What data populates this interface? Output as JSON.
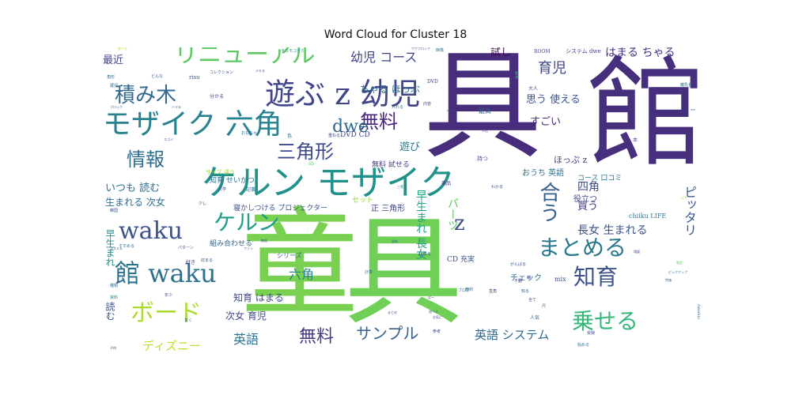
{
  "chart_data": {
    "type": "wordcloud",
    "title": "Word Cloud for Cluster 18",
    "words": [
      {
        "text": "館",
        "weight": 100,
        "color": "#46307e"
      },
      {
        "text": "具",
        "weight": 98,
        "color": "#472d7b"
      },
      {
        "text": "童",
        "weight": 96,
        "color": "#7ad151"
      },
      {
        "text": "具",
        "weight": 94,
        "color": "#70cf57"
      },
      {
        "text": "ケルン モザイク",
        "weight": 60,
        "color": "#21918c"
      },
      {
        "text": "遊ぶ z 幼児",
        "weight": 48,
        "color": "#404688"
      },
      {
        "text": "モザイク 六角",
        "weight": 46,
        "color": "#26828e"
      },
      {
        "text": "リニューアル",
        "weight": 40,
        "color": "#5ec962"
      },
      {
        "text": "waku",
        "weight": 38,
        "color": "#3b528b"
      },
      {
        "text": "館 waku",
        "weight": 40,
        "color": "#2c728e"
      },
      {
        "text": "ボード",
        "weight": 38,
        "color": "#addc30"
      },
      {
        "text": "積み木",
        "weight": 34,
        "color": "#31688e"
      },
      {
        "text": "無料",
        "weight": 30,
        "color": "#482878"
      },
      {
        "text": "三角形",
        "weight": 30,
        "color": "#3e4989"
      },
      {
        "text": "ケルン",
        "weight": 34,
        "color": "#1f9e89"
      },
      {
        "text": "まとめる",
        "weight": 32,
        "color": "#2a788e"
      },
      {
        "text": "知育",
        "weight": 30,
        "color": "#3b528b"
      },
      {
        "text": "乗せる",
        "weight": 30,
        "color": "#35b779"
      },
      {
        "text": "情報",
        "weight": 28,
        "color": "#2e6e8e"
      },
      {
        "text": "合う",
        "weight": 28,
        "color": "#355f8d"
      },
      {
        "text": "dwe",
        "weight": 26,
        "color": "#31688e"
      },
      {
        "text": "z",
        "weight": 26,
        "color": "#3e4a89"
      },
      {
        "text": "サンプル",
        "weight": 24,
        "color": "#33638d"
      },
      {
        "text": "無料",
        "weight": 24,
        "color": "#443983"
      },
      {
        "text": "育児",
        "weight": 22,
        "color": "#3f4788"
      },
      {
        "text": "幼児 コース",
        "weight": 18,
        "color": "#414487"
      },
      {
        "text": "ピッタリ",
        "weight": 22,
        "color": "#38588c"
      },
      {
        "text": "パーツ",
        "weight": 18,
        "color": "#5ec962"
      },
      {
        "text": "早生まれ 長女",
        "weight": 18,
        "color": "#20a386"
      },
      {
        "text": "長女 生まれる",
        "weight": 17,
        "color": "#3b528b"
      },
      {
        "text": "英語 システム",
        "weight": 18,
        "color": "#31688e"
      },
      {
        "text": "ディズニー",
        "weight": 18,
        "color": "#bddf26"
      },
      {
        "text": "英語",
        "weight": 18,
        "color": "#2c728e"
      },
      {
        "text": "六角",
        "weight": 18,
        "color": "#25848e"
      },
      {
        "text": "知育 はまる",
        "weight": 14,
        "color": "#3e4989"
      },
      {
        "text": "次女 育児",
        "weight": 14,
        "color": "#3f4889"
      },
      {
        "text": "最近",
        "weight": 16,
        "color": "#404688"
      },
      {
        "text": "試し",
        "weight": 16,
        "color": "#440154"
      },
      {
        "text": "はまる ちゃる",
        "weight": 16,
        "color": "#46337f"
      },
      {
        "text": "遊び",
        "weight": 16,
        "color": "#2a788e"
      },
      {
        "text": "すごい",
        "weight": 16,
        "color": "#482475"
      },
      {
        "text": "思う 使える",
        "weight": 15,
        "color": "#3b528b"
      },
      {
        "text": "四角",
        "weight": 16,
        "color": "#3e4989"
      },
      {
        "text": "買う",
        "weight": 15,
        "color": "#463480"
      },
      {
        "text": "いつも 読む",
        "weight": 15,
        "color": "#2d708e"
      },
      {
        "text": "生まれる 次女",
        "weight": 15,
        "color": "#2f6b8e"
      },
      {
        "text": "早生まれ",
        "weight": 15,
        "color": "#21918c"
      },
      {
        "text": "読む",
        "weight": 15,
        "color": "#3b528b"
      },
      {
        "text": "ちゃる ほっぷ",
        "weight": 13,
        "color": "#2c728e"
      },
      {
        "text": "ほっぷ z",
        "weight": 12,
        "color": "#433e85"
      },
      {
        "text": "おうち 英語",
        "weight": 12,
        "color": "#2c728e"
      },
      {
        "text": "役立つ",
        "weight": 12,
        "color": "#3f4889"
      },
      {
        "text": "コース 口コミ",
        "weight": 11,
        "color": "#2a788e"
      },
      {
        "text": "正 三角形",
        "weight": 11,
        "color": "#404688"
      },
      {
        "text": "CD 充実",
        "weight": 11,
        "color": "#3b528b"
      },
      {
        "text": "チェック",
        "weight": 11,
        "color": "#2f6b8e"
      },
      {
        "text": "寝かしつける プロジェクター",
        "weight": 11,
        "color": "#3b528b"
      },
      {
        "text": "知育 せいかつ",
        "weight": 11,
        "color": "#2c728e"
      },
      {
        "text": "組み合わせる",
        "weight": 11,
        "color": "#32648e"
      },
      {
        "text": "無料 試せる",
        "weight": 10,
        "color": "#433d84"
      },
      {
        "text": "DVD CD",
        "weight": 10,
        "color": "#3f4788"
      },
      {
        "text": "セット",
        "weight": 10,
        "color": "#8fd744"
      },
      {
        "text": "シリーズ",
        "weight": 9,
        "color": "#31688e"
      },
      {
        "text": "mix",
        "weight": 9,
        "color": "#3b528b"
      },
      {
        "text": "chiiku LIFE",
        "weight": 8,
        "color": "#2c728e"
      },
      {
        "text": "システム dwe",
        "weight": 8,
        "color": "#404688"
      },
      {
        "text": "ROOM",
        "weight": 7,
        "color": "#3e4989"
      },
      {
        "text": "risu",
        "weight": 8,
        "color": "#3b528b"
      },
      {
        "text": "最高",
        "weight": 9,
        "color": "#355f8d"
      },
      {
        "text": "サイズ 違う",
        "weight": 8,
        "color": "#a0da39"
      },
      {
        "text": "持つ",
        "weight": 8,
        "color": "#3b528b"
      },
      {
        "text": "商品",
        "weight": 7,
        "color": "#463480"
      },
      {
        "text": "分かる",
        "weight": 7,
        "color": "#443983"
      },
      {
        "text": "記事",
        "weight": 7,
        "color": "#2f6b8e"
      },
      {
        "text": "大人",
        "weight": 7,
        "color": "#404688"
      },
      {
        "text": "人気",
        "weight": 7,
        "color": "#31688e"
      },
      {
        "text": "好き",
        "weight": 7,
        "color": "#472d7b"
      },
      {
        "text": "色",
        "weight": 7,
        "color": "#2c728e"
      },
      {
        "text": "本",
        "weight": 7,
        "color": "#3b528b"
      },
      {
        "text": "sb",
        "weight": 7,
        "color": "#5ec962"
      },
      {
        "text": "DVD",
        "weight": 7,
        "color": "#3f4788"
      },
      {
        "text": "絵本",
        "weight": 6,
        "color": "#35b779"
      },
      {
        "text": "内容",
        "weight": 6,
        "color": "#433e85"
      },
      {
        "text": "ワクブロック",
        "weight": 5,
        "color": "#3b528b"
      },
      {
        "text": "映像",
        "weight": 6,
        "color": "#2c728e"
      },
      {
        "text": "はまる",
        "weight": 6,
        "color": "#3e4989"
      },
      {
        "text": "教材",
        "weight": 6,
        "color": "#31688e"
      },
      {
        "text": "全て",
        "weight": 6,
        "color": "#404688"
      },
      {
        "text": "ブログ",
        "weight": 6,
        "color": "#2a788e"
      },
      {
        "text": "参考",
        "weight": 6,
        "color": "#3e4989"
      },
      {
        "text": "受験",
        "weight": 6,
        "color": "#3b528b"
      },
      {
        "text": "始める",
        "weight": 6,
        "color": "#2c728e"
      },
      {
        "text": "Ameblo",
        "weight": 6,
        "color": "#31688e"
      },
      {
        "text": "コレクション",
        "weight": 6,
        "color": "#3b528b"
      },
      {
        "text": "モコモコゼミ",
        "weight": 6,
        "color": "#21918c"
      },
      {
        "text": "メモる",
        "weight": 5,
        "color": "#3e4989"
      },
      {
        "text": "角形",
        "weight": 6,
        "color": "#2c728e"
      },
      {
        "text": "どんな",
        "weight": 6,
        "color": "#3b528b"
      },
      {
        "text": "蔵児",
        "weight": 6,
        "color": "#31688e"
      },
      {
        "text": "年少",
        "weight": 6,
        "color": "#3e4989"
      },
      {
        "text": "資料",
        "weight": 6,
        "color": "#2a788e"
      },
      {
        "text": "韓国",
        "weight": 6,
        "color": "#3b528b"
      },
      {
        "text": "大学",
        "weight": 6,
        "color": "#404688"
      },
      {
        "text": "離乳食",
        "weight": 6,
        "color": "#2c728e"
      },
      {
        "text": "限定",
        "weight": 5,
        "color": "#5ec962"
      },
      {
        "text": "ピザ",
        "weight": 5,
        "color": "#a0da39"
      },
      {
        "text": "ピックアップ",
        "weight": 5,
        "color": "#2c728e"
      },
      {
        "text": "がんばる",
        "weight": 6,
        "color": "#3b528b"
      },
      {
        "text": "不動",
        "weight": 6,
        "color": "#3e4989"
      },
      {
        "text": "知る",
        "weight": 6,
        "color": "#31688e"
      },
      {
        "text": "娘",
        "weight": 6,
        "color": "#404688"
      },
      {
        "text": "尺",
        "weight": 6,
        "color": "#3b528b"
      },
      {
        "text": "種類",
        "weight": 6,
        "color": "#2c728e"
      },
      {
        "text": "パターン",
        "weight": 6,
        "color": "#3e4989"
      },
      {
        "text": "すすめる",
        "weight": 6,
        "color": "#31688e"
      },
      {
        "text": "ファン",
        "weight": 5,
        "color": "#404688"
      },
      {
        "text": "無限",
        "weight": 5,
        "color": "#3b528b"
      },
      {
        "text": "計算",
        "weight": 6,
        "color": "#2c728e"
      },
      {
        "text": "直角",
        "weight": 6,
        "color": "#3e4989"
      },
      {
        "text": "更新",
        "weight": 5,
        "color": "#31688e"
      },
      {
        "text": "わかる",
        "weight": 6,
        "color": "#3b528b"
      },
      {
        "text": "重ねる",
        "weight": 6,
        "color": "#404688"
      },
      {
        "text": "入れる",
        "weight": 6,
        "color": "#2c728e"
      },
      {
        "text": "少し",
        "weight": 6,
        "color": "#3e4989"
      },
      {
        "text": "置く",
        "weight": 6,
        "color": "#31688e"
      },
      {
        "text": "収まる",
        "weight": 6,
        "color": "#3b528b"
      },
      {
        "text": "育てる",
        "weight": 5,
        "color": "#b5de2b"
      },
      {
        "text": "ブロック",
        "weight": 5,
        "color": "#3b528b"
      },
      {
        "text": "おもちゃ",
        "weight": 6,
        "color": "#2c728e"
      },
      {
        "text": "スゴイ",
        "weight": 5,
        "color": "#3e4989"
      },
      {
        "text": "ハマる",
        "weight": 5,
        "color": "#31688e"
      },
      {
        "text": "子供",
        "weight": 5,
        "color": "#404688"
      },
      {
        "text": "wwk",
        "weight": 5,
        "color": "#3b528b"
      },
      {
        "text": "ert",
        "weight": 5,
        "color": "#2c728e"
      },
      {
        "text": "増量",
        "weight": 5,
        "color": "#3e4989"
      },
      {
        "text": "特価",
        "weight": 5,
        "color": "#31688e"
      },
      {
        "text": "ススメる",
        "weight": 5,
        "color": "#3b528b"
      },
      {
        "text": "ばー",
        "weight": 5,
        "color": "#404688"
      },
      {
        "text": "三等辺",
        "weight": 5,
        "color": "#2c728e"
      },
      {
        "text": "中込",
        "weight": 5,
        "color": "#3e4989"
      },
      {
        "text": "遊べる",
        "weight": 5,
        "color": "#31688e"
      },
      {
        "text": "まとめ",
        "weight": 5,
        "color": "#3b528b"
      },
      {
        "text": "お気に",
        "weight": 5,
        "color": "#404688"
      }
    ]
  }
}
